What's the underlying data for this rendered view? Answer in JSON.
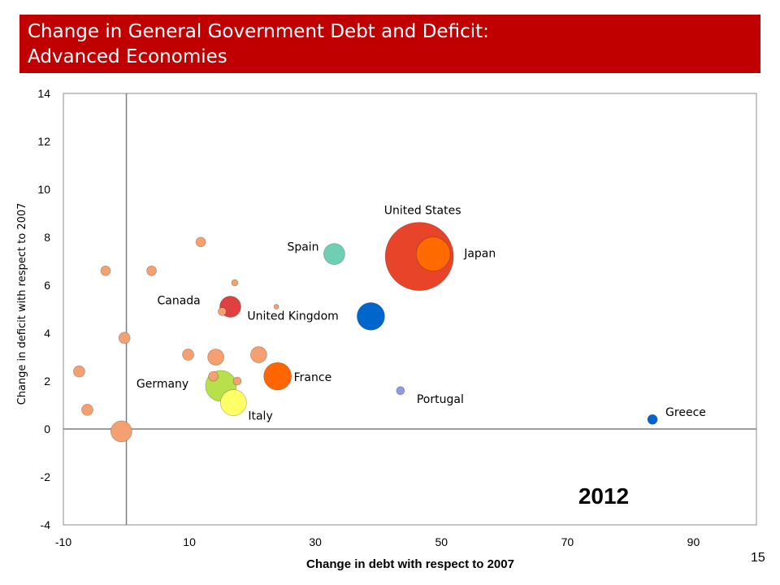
{
  "header": {
    "title_line1": "Change in General Government Debt and Deficit:",
    "title_line2": "Advanced Economies",
    "title_color": "#c00000"
  },
  "slide_number": "15",
  "chart_data": {
    "type": "bubble",
    "xlabel": "Change in debt with respect to 2007",
    "ylabel": "Change in deficit with respect to 2007",
    "xlim": [
      -10,
      100
    ],
    "ylim": [
      -4,
      14
    ],
    "xticks": [
      -10,
      10,
      30,
      50,
      70,
      90
    ],
    "yticks": [
      -4,
      -2,
      0,
      2,
      4,
      6,
      8,
      10,
      12,
      14
    ],
    "reference_lines": {
      "x": 0,
      "y": 0
    },
    "year_label": "2012",
    "points": [
      {
        "name": "United States",
        "x": 46.5,
        "y": 7.2,
        "size": 42,
        "color": "#e8442a"
      },
      {
        "name": "Japan",
        "x": 48.7,
        "y": 7.3,
        "size": 21,
        "color": "#ff6a00"
      },
      {
        "name": "Spain",
        "x": 33.0,
        "y": 7.3,
        "size": 13,
        "color": "#6fcfb2"
      },
      {
        "name": "United Kingdom",
        "x": 38.8,
        "y": 4.7,
        "size": 17,
        "color": "#0066cc"
      },
      {
        "name": "Canada",
        "x": 16.5,
        "y": 5.1,
        "size": 13,
        "color": "#e04040"
      },
      {
        "name": "France",
        "x": 24.0,
        "y": 2.2,
        "size": 17,
        "color": "#ff6600"
      },
      {
        "name": "Germany",
        "x": 15.0,
        "y": 1.8,
        "size": 19,
        "color": "#b7e04a"
      },
      {
        "name": "Italy",
        "x": 17.0,
        "y": 1.1,
        "size": 16,
        "color": "#ffff66"
      },
      {
        "name": "Portugal",
        "x": 43.5,
        "y": 1.6,
        "size": 5,
        "color": "#8f9ae0"
      },
      {
        "name": "Greece",
        "x": 83.5,
        "y": 0.4,
        "size": 6,
        "color": "#0066cc"
      },
      {
        "name": "",
        "x": -0.8,
        "y": -0.1,
        "size": 13,
        "color": "#f4a070"
      },
      {
        "name": "",
        "x": -7.5,
        "y": 2.4,
        "size": 7,
        "color": "#f4a070"
      },
      {
        "name": "",
        "x": -6.2,
        "y": 0.8,
        "size": 7,
        "color": "#f4a070"
      },
      {
        "name": "",
        "x": -3.3,
        "y": 6.6,
        "size": 6,
        "color": "#f4a070"
      },
      {
        "name": "",
        "x": -0.3,
        "y": 3.8,
        "size": 7,
        "color": "#f4a070"
      },
      {
        "name": "",
        "x": 4.0,
        "y": 6.6,
        "size": 6,
        "color": "#f4a070"
      },
      {
        "name": "",
        "x": 11.8,
        "y": 7.8,
        "size": 6,
        "color": "#f4a070"
      },
      {
        "name": "",
        "x": 9.8,
        "y": 3.1,
        "size": 7,
        "color": "#f4a070"
      },
      {
        "name": "",
        "x": 14.2,
        "y": 3.0,
        "size": 10,
        "color": "#f4a070"
      },
      {
        "name": "",
        "x": 21.0,
        "y": 3.1,
        "size": 10,
        "color": "#f4a070"
      },
      {
        "name": "",
        "x": 17.2,
        "y": 6.1,
        "size": 4,
        "color": "#f4a070"
      },
      {
        "name": "",
        "x": 23.8,
        "y": 5.1,
        "size": 3,
        "color": "#f4a070"
      },
      {
        "name": "",
        "x": 15.2,
        "y": 4.9,
        "size": 5,
        "color": "#f4a070"
      },
      {
        "name": "",
        "x": 17.6,
        "y": 2.0,
        "size": 5,
        "color": "#f4a070"
      },
      {
        "name": "",
        "x": 13.8,
        "y": 2.2,
        "size": 6,
        "color": "#f4a070"
      }
    ]
  }
}
